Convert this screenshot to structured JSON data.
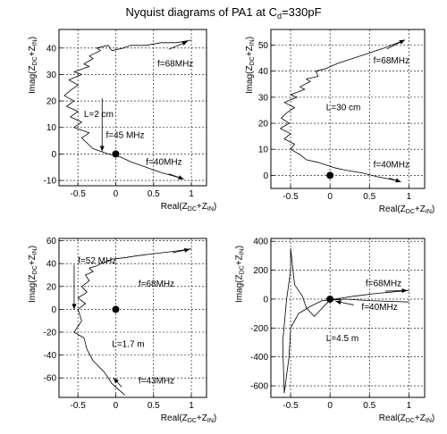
{
  "title": {
    "main": "Nyquist diagrams of PA1 at C",
    "sub": "d",
    "tail": "=330pF"
  },
  "axis_label_base": {
    "y": "Imag(Z",
    "x": "Real(Z",
    "s1": "DC",
    "s2": "IN",
    "plus": "+Z",
    "close": ")"
  },
  "chart_data": [
    {
      "type": "line",
      "xlim": [
        -0.75,
        1.2
      ],
      "ylim": [
        -12,
        47
      ],
      "xticks": [
        -0.5,
        0,
        0.5,
        1
      ],
      "xticklabels": [
        "-0.5",
        "0",
        "0.5",
        "1"
      ],
      "yticks": [
        -10,
        0,
        10,
        20,
        30,
        40
      ],
      "yticklabels": [
        "-10",
        "0",
        "10",
        "20",
        "30",
        "40"
      ],
      "grid": true,
      "x": [
        0.85,
        0.6,
        0.4,
        0.2,
        0.05,
        -0.1,
        -0.3,
        -0.45,
        -0.35,
        -0.55,
        -0.45,
        -0.6,
        -0.5,
        -0.65,
        -0.55,
        -0.68,
        -0.6,
        -0.5,
        -0.62,
        -0.45,
        -0.55,
        -0.35,
        -0.42,
        -0.3,
        -0.35,
        -0.2,
        -0.25,
        -0.1,
        -0.05,
        0.1,
        0.2,
        0.4,
        0.6,
        0.8,
        1.0
      ],
      "y": [
        -9,
        -7,
        -5,
        -3,
        -1,
        0,
        2,
        6,
        8,
        10,
        12,
        14,
        16,
        18,
        20,
        22,
        24,
        26,
        28,
        30,
        31,
        33,
        34,
        36,
        37,
        39,
        40,
        41,
        39,
        40,
        41,
        41,
        42,
        42,
        43
      ],
      "marker_point": [
        0,
        0
      ],
      "annotations": [
        {
          "text": "f=68MHz",
          "x": 0.55,
          "y": 33,
          "arrow_from": [
            0.7,
            39.5
          ],
          "arrow_to": [
            0.95,
            42.5
          ]
        },
        {
          "text": "L=2 cm",
          "x": -0.42,
          "y": 14,
          "arrow_from": [
            -0.18,
            21
          ],
          "arrow_to": [
            -0.18,
            1
          ]
        },
        {
          "text": "f=45 MHz",
          "x": -0.13,
          "y": 6
        },
        {
          "text": "f=40MHz",
          "x": 0.4,
          "y": -4,
          "arrow_from": [
            0.7,
            -7.5
          ],
          "arrow_to": [
            0.9,
            -9.5
          ]
        }
      ]
    },
    {
      "type": "line",
      "xlim": [
        -0.75,
        1.2
      ],
      "ylim": [
        -5,
        56
      ],
      "xticks": [
        -0.5,
        0,
        0.5,
        1
      ],
      "xticklabels": [
        "-0.5",
        "0",
        "0.5",
        "1"
      ],
      "yticks": [
        0,
        10,
        20,
        30,
        40,
        50
      ],
      "yticklabels": [
        "0",
        "10",
        "20",
        "30",
        "40",
        "50"
      ],
      "grid": true,
      "x": [
        0.85,
        0.6,
        0.4,
        0.2,
        0.05,
        -0.15,
        -0.3,
        -0.38,
        -0.5,
        -0.45,
        -0.58,
        -0.5,
        -0.63,
        -0.52,
        -0.62,
        -0.55,
        -0.45,
        -0.58,
        -0.42,
        -0.5,
        -0.32,
        -0.38,
        -0.25,
        -0.3,
        -0.15,
        -0.18,
        -0.05,
        0.1,
        0.3,
        0.5,
        0.7,
        0.95
      ],
      "y": [
        -2,
        -0.5,
        1,
        2,
        3,
        5,
        6,
        8,
        10,
        12,
        14,
        16,
        18,
        20,
        22,
        24,
        26,
        28,
        30,
        31,
        33,
        34,
        36,
        37,
        38,
        40,
        41,
        43,
        45,
        47,
        49,
        52
      ],
      "marker_point": [
        0,
        0
      ],
      "annotations": [
        {
          "text": "f=68MHz",
          "x": 0.55,
          "y": 43,
          "arrow_from": [
            0.72,
            48.5
          ],
          "arrow_to": [
            0.95,
            52
          ]
        },
        {
          "text": "L=30 cm",
          "x": -0.05,
          "y": 25
        },
        {
          "text": "f=40MHz",
          "x": 0.55,
          "y": 3,
          "arrow_from": [
            0.75,
            -1
          ],
          "arrow_to": [
            0.9,
            -2.5
          ]
        }
      ]
    },
    {
      "type": "line",
      "xlim": [
        -0.75,
        1.2
      ],
      "ylim": [
        -77,
        62
      ],
      "xticks": [
        -0.5,
        0,
        0.5,
        1
      ],
      "xticklabels": [
        "-0.5",
        "0",
        "0.5",
        "1"
      ],
      "yticks": [
        -60,
        -40,
        -20,
        0,
        20,
        40,
        60
      ],
      "yticklabels": [
        "-60",
        "-40",
        "-20",
        "0",
        "20",
        "40",
        "60"
      ],
      "grid": true,
      "x": [
        0.12,
        -0.05,
        -0.15,
        -0.3,
        -0.38,
        -0.42,
        -0.55,
        -0.45,
        -0.5,
        -0.4,
        -0.5,
        -0.38,
        -0.45,
        -0.35,
        -0.4,
        -0.3,
        -0.35,
        -0.25,
        -0.2,
        -0.1,
        -0.05,
        0.1,
        0.3,
        0.55,
        0.8,
        1.0
      ],
      "y": [
        -75,
        -65,
        -55,
        -45,
        -35,
        -25,
        -20,
        -10,
        0,
        5,
        10,
        15,
        20,
        25,
        30,
        33,
        36,
        38,
        40,
        42,
        44,
        45,
        47,
        49,
        51,
        53
      ],
      "marker_point": [
        0,
        0
      ],
      "annotations": [
        {
          "text": "f=52 MHz",
          "x": -0.5,
          "y": 40,
          "arrow_from": [
            -0.55,
            39
          ],
          "arrow_to": [
            -0.55,
            0
          ]
        },
        {
          "text": "f=68MHz",
          "x": 0.3,
          "y": 20,
          "arrow_from": [
            0.75,
            49.5
          ],
          "arrow_to": [
            0.98,
            52.5
          ]
        },
        {
          "text": "L=1.7 m",
          "x": -0.05,
          "y": -33
        },
        {
          "text": "f=43MHz",
          "x": 0.3,
          "y": -65,
          "arrow_from": [
            0.08,
            -68
          ],
          "arrow_to": [
            -0.03,
            -60
          ]
        }
      ]
    },
    {
      "type": "line",
      "xlim": [
        -0.75,
        1.2
      ],
      "ylim": [
        -680,
        420
      ],
      "xticks": [
        -0.5,
        0,
        0.5,
        1
      ],
      "xticklabels": [
        "-0.5",
        "0",
        "0.5",
        "1"
      ],
      "yticks": [
        -600,
        -400,
        -200,
        0,
        200,
        400
      ],
      "yticklabels": [
        "-600",
        "-400",
        "-200",
        "0",
        "200",
        "400"
      ],
      "grid": true,
      "x": [
        1.0,
        0.5,
        0.2,
        0.05,
        -0.1,
        -0.25,
        -0.4,
        -0.5,
        -0.52,
        -0.58,
        -0.6,
        -0.55,
        -0.5,
        -0.5,
        -0.45,
        -0.35,
        -0.3,
        -0.2,
        0.0,
        0.3,
        0.6,
        1.0
      ],
      "y": [
        -20,
        -10,
        0,
        -5,
        -10,
        -50,
        -100,
        -200,
        -400,
        -650,
        -300,
        0,
        200,
        350,
        100,
        20,
        -60,
        -120,
        -5,
        20,
        40,
        60
      ],
      "marker_point": [
        0,
        0
      ],
      "annotations": [
        {
          "text": "f=68MHz",
          "x": 0.45,
          "y": 90,
          "arrow_from": [
            0.7,
            55
          ],
          "arrow_to": [
            0.98,
            60
          ]
        },
        {
          "text": "f=40MHz",
          "x": 0.4,
          "y": -75,
          "arrow_from": [
            0.3,
            -40
          ],
          "arrow_to": [
            0.07,
            -15
          ]
        },
        {
          "text": "L=4.5 m",
          "x": -0.05,
          "y": -290
        }
      ]
    }
  ]
}
